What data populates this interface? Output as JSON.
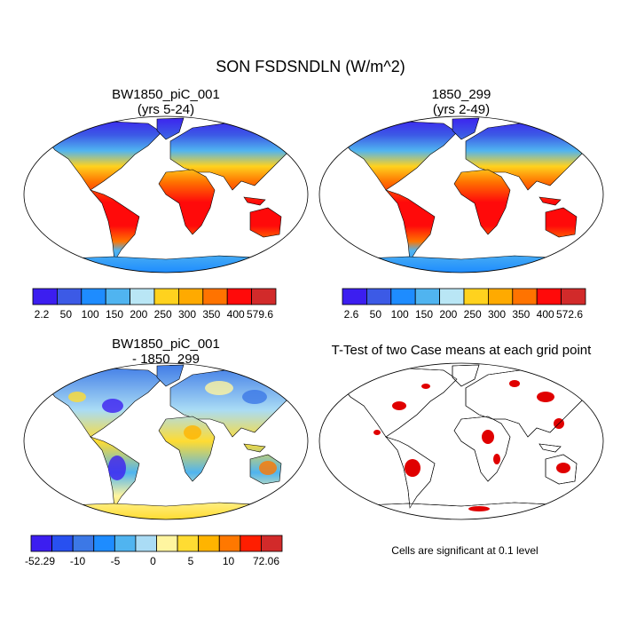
{
  "title": "SON FSDSNDLN (W/m^2)",
  "panels": [
    {
      "title": [
        "BW1850_piC_001",
        "(yrs 5-24)"
      ],
      "colorbar": {
        "colors": [
          "#3c1ef0",
          "#3c5ae6",
          "#1e8cff",
          "#50b4f0",
          "#b9e6f5",
          "#ffd21e",
          "#ffaa00",
          "#ff7300",
          "#ff0a0a",
          "#d22a2a"
        ],
        "labels": [
          "2.2",
          "50",
          "100",
          "150",
          "200",
          "250",
          "300",
          "350",
          "400",
          "579.6"
        ]
      }
    },
    {
      "title": [
        "1850_299",
        "(yrs 2-49)"
      ],
      "colorbar": {
        "colors": [
          "#3c1ef0",
          "#3c5ae6",
          "#1e8cff",
          "#50b4f0",
          "#b9e6f5",
          "#ffd21e",
          "#ffaa00",
          "#ff7300",
          "#ff0a0a",
          "#d22a2a"
        ],
        "labels": [
          "2.6",
          "50",
          "100",
          "150",
          "200",
          "250",
          "300",
          "350",
          "400",
          "572.6"
        ]
      }
    },
    {
      "title": [
        "BW1850_piC_001",
        "- 1850_299"
      ],
      "colorbar": {
        "colors": [
          "#3c1ef0",
          "#2850f0",
          "#3c78e6",
          "#1e8cff",
          "#50b4f0",
          "#aadcf5",
          "#fff5a0",
          "#ffdc32",
          "#ffb400",
          "#ff7800",
          "#ff1e00",
          "#d22a2a"
        ],
        "labels": [
          "-52.29",
          "-10",
          "-5",
          "0",
          "5",
          "10",
          "72.06"
        ]
      }
    },
    {
      "title": [
        "T-Test of two Case means at each grid point"
      ],
      "note": "Cells are significant at 0.1 level"
    }
  ]
}
